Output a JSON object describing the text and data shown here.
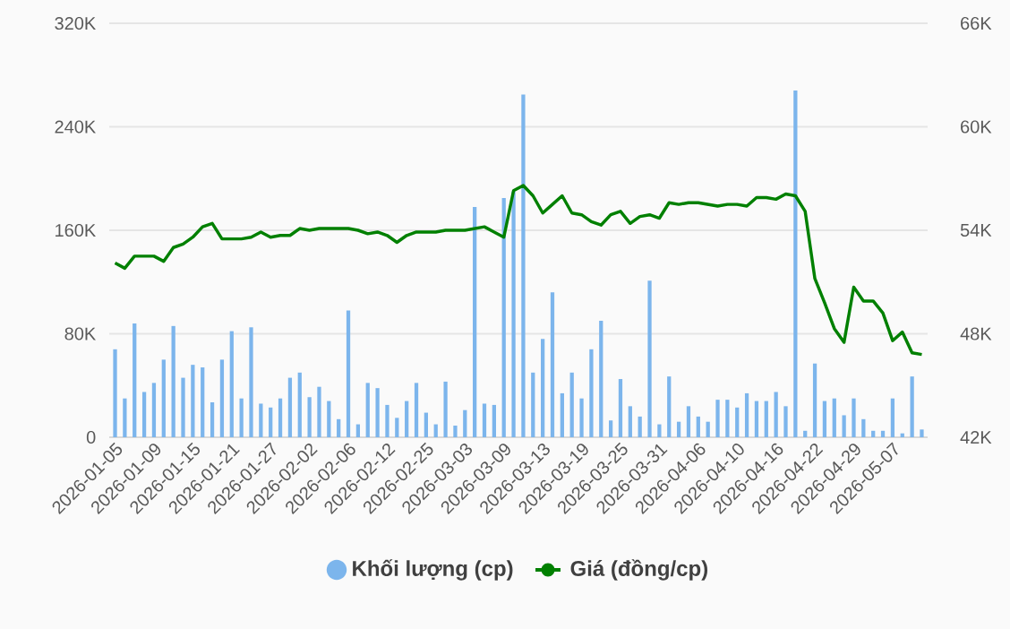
{
  "chart_data": {
    "type": "bar",
    "categories": [
      "2026-01-05",
      null,
      null,
      null,
      "2026-01-09",
      null,
      null,
      null,
      "2026-01-15",
      null,
      null,
      null,
      "2026-01-21",
      null,
      null,
      null,
      "2026-01-27",
      null,
      null,
      null,
      "2026-02-02",
      null,
      null,
      null,
      "2026-02-06",
      null,
      null,
      null,
      "2026-02-12",
      null,
      null,
      null,
      "2026-02-25",
      null,
      null,
      null,
      "2026-03-03",
      null,
      null,
      null,
      "2026-03-09",
      null,
      null,
      null,
      "2026-03-13",
      null,
      null,
      null,
      "2026-03-19",
      null,
      null,
      null,
      "2026-03-25",
      null,
      null,
      null,
      "2026-03-31",
      null,
      null,
      null,
      "2026-04-06",
      null,
      null,
      null,
      "2026-04-10",
      null,
      null,
      null,
      "2026-04-16",
      null,
      null,
      null,
      "2026-04-22",
      null,
      null,
      null,
      "2026-04-29",
      null,
      null,
      null,
      "2026-05-07",
      null,
      null,
      null
    ],
    "series": [
      {
        "name": "Khối lượng (cp)",
        "color": "#7cb5ec",
        "values": [
          68000,
          30000,
          88000,
          35000,
          42000,
          60000,
          86000,
          46000,
          56000,
          54000,
          27000,
          60000,
          82000,
          30000,
          85000,
          26000,
          23000,
          30000,
          46000,
          50000,
          31000,
          39000,
          28000,
          14000,
          98000,
          10000,
          42000,
          38000,
          25000,
          15000,
          28000,
          42000,
          19000,
          10000,
          43000,
          9000,
          21000,
          178000,
          26000,
          25000,
          185000,
          190000,
          265000,
          50000,
          76000,
          112000,
          34000,
          50000,
          30000,
          68000,
          90000,
          13000,
          45000,
          24000,
          16000,
          121000,
          10000,
          47000,
          12000,
          24000,
          16000,
          12000,
          29000,
          29000,
          23000,
          34000,
          28000,
          28000,
          35000,
          24000,
          268000,
          5000,
          57000,
          28000,
          30000,
          17000,
          30000,
          14000,
          5000,
          5000,
          30000,
          3000,
          47000,
          6000
        ]
      },
      {
        "name": "Giá (đồng/cp)",
        "type": "line",
        "axis": "y2",
        "color": "#008000",
        "values": [
          52100,
          51800,
          52500,
          52500,
          52500,
          52200,
          53000,
          53200,
          53600,
          54200,
          54400,
          53500,
          53500,
          53500,
          53600,
          53900,
          53600,
          53700,
          53700,
          54100,
          54000,
          54100,
          54100,
          54100,
          54100,
          54000,
          53800,
          53900,
          53700,
          53300,
          53700,
          53900,
          53900,
          53900,
          54000,
          54000,
          54000,
          54100,
          54200,
          53900,
          53600,
          56300,
          56600,
          56000,
          55000,
          55500,
          56000,
          55000,
          54900,
          54500,
          54300,
          54900,
          55100,
          54400,
          54800,
          54900,
          54700,
          55600,
          55500,
          55600,
          55600,
          55500,
          55400,
          55500,
          55500,
          55400,
          55900,
          55900,
          55800,
          56100,
          56000,
          55100,
          51200,
          49800,
          48300,
          47500,
          50700,
          49900,
          49900,
          49200,
          47600,
          48100,
          46900,
          46800
        ]
      }
    ],
    "ylim": [
      0,
      320000
    ],
    "yticks": [
      0,
      {
        "value": 80000,
        "label": "80K"
      },
      {
        "value": 160000,
        "label": "160K"
      },
      {
        "value": 240000,
        "label": "240K"
      },
      {
        "value": 320000,
        "label": "320K"
      }
    ],
    "y2lim": [
      42000,
      66000
    ],
    "y2ticks": [
      {
        "value": 42000,
        "label": "42K"
      },
      {
        "value": 48000,
        "label": "48K"
      },
      {
        "value": 54000,
        "label": "54K"
      },
      {
        "value": 60000,
        "label": "60K"
      },
      {
        "value": 66000,
        "label": "66K"
      }
    ],
    "grid": "y",
    "legend": "bottom"
  }
}
